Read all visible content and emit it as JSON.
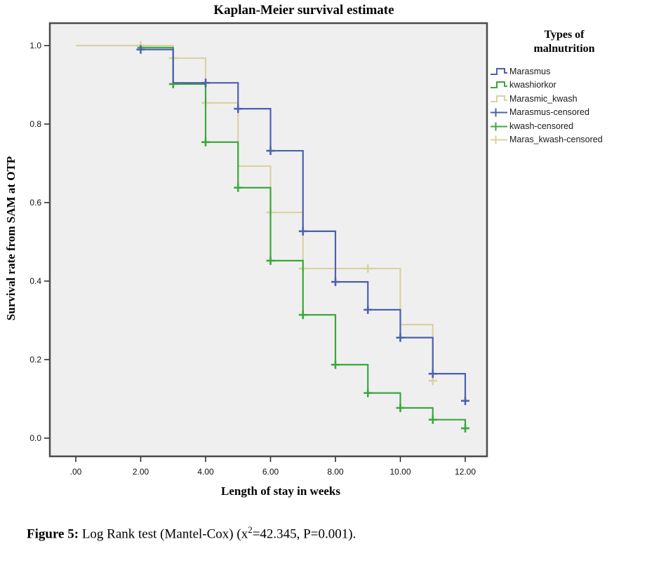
{
  "chart_data": {
    "type": "line",
    "subtype": "kaplan-meier-step",
    "title": "Kaplan-Meier survival estimate",
    "xlabel": "Length of stay in weeks",
    "ylabel": "Survival rate from SAM at OTP",
    "xlim": [
      -0.8,
      12.7
    ],
    "ylim": [
      -0.07,
      1.07
    ],
    "grid": false,
    "legend_position": "right",
    "plot_background": "#f0eff0",
    "frame_color": "#4a4a4a",
    "x_ticks": [
      0,
      2,
      4,
      6,
      8,
      10,
      12
    ],
    "x_tick_labels": [
      ".00",
      "2.00",
      "4.00",
      "6.00",
      "8.00",
      "10.00",
      "12.00"
    ],
    "y_ticks": [
      0.0,
      0.2,
      0.4,
      0.6,
      0.8,
      1.0
    ],
    "y_tick_labels": [
      "0.0",
      "0.2",
      "0.4",
      "0.6",
      "0.8",
      "1.0"
    ],
    "series": [
      {
        "name": "Marasmic_kwash",
        "color": "#d9d2a0",
        "start": [
          0,
          1.0
        ],
        "steps": [
          [
            3,
            0.968
          ],
          [
            4,
            0.854
          ],
          [
            5,
            0.693
          ],
          [
            6,
            0.575
          ],
          [
            7,
            0.432
          ],
          [
            10,
            0.289
          ],
          [
            11,
            0.146
          ]
        ],
        "end": 11.1,
        "censored": [
          [
            2,
            1.0
          ],
          [
            3,
            0.968
          ],
          [
            4,
            0.854
          ],
          [
            6,
            0.575
          ],
          [
            7,
            0.432
          ],
          [
            9,
            0.432
          ],
          [
            11,
            0.146
          ]
        ]
      },
      {
        "name": "kwashiorkor",
        "color": "#39a83c",
        "start": [
          1.9,
          0.995
        ],
        "steps": [
          [
            3,
            0.902
          ],
          [
            4,
            0.754
          ],
          [
            5,
            0.638
          ],
          [
            6,
            0.452
          ],
          [
            7,
            0.314
          ],
          [
            8,
            0.187
          ],
          [
            9,
            0.115
          ],
          [
            10,
            0.077
          ],
          [
            11,
            0.047
          ],
          [
            12,
            0.025
          ]
        ],
        "end": 12.1,
        "censored": [
          [
            3,
            0.902
          ],
          [
            4,
            0.754
          ],
          [
            5,
            0.638
          ],
          [
            6,
            0.452
          ],
          [
            7,
            0.314
          ],
          [
            8,
            0.187
          ],
          [
            9,
            0.115
          ],
          [
            10,
            0.077
          ],
          [
            11,
            0.047
          ],
          [
            12,
            0.025
          ]
        ]
      },
      {
        "name": "Marasmus",
        "color": "#4b61ad",
        "start": [
          1.9,
          0.99
        ],
        "steps": [
          [
            3,
            0.905
          ],
          [
            5,
            0.839
          ],
          [
            6,
            0.732
          ],
          [
            7,
            0.527
          ],
          [
            8,
            0.398
          ],
          [
            9,
            0.327
          ],
          [
            10,
            0.256
          ],
          [
            11,
            0.164
          ],
          [
            12,
            0.095
          ]
        ],
        "end": 12.1,
        "censored": [
          [
            2,
            0.99
          ],
          [
            4,
            0.905
          ],
          [
            5,
            0.839
          ],
          [
            6,
            0.732
          ],
          [
            7,
            0.527
          ],
          [
            8,
            0.398
          ],
          [
            9,
            0.327
          ],
          [
            10,
            0.256
          ],
          [
            11,
            0.164
          ],
          [
            12,
            0.095
          ]
        ]
      }
    ]
  },
  "legend": {
    "title_line1": "Types of",
    "title_line2": "malnutrition",
    "items": [
      {
        "label": "Marasmus",
        "color": "#4b61ad",
        "glyph": "step-line"
      },
      {
        "label": "kwashiorkor",
        "color": "#39a83c",
        "glyph": "step-line"
      },
      {
        "label": "Marasmic_kwash",
        "color": "#d9d2a0",
        "glyph": "step-line"
      },
      {
        "label": "Marasmus-censored",
        "color": "#4b61ad",
        "glyph": "plus"
      },
      {
        "label": "kwash-censored",
        "color": "#39a83c",
        "glyph": "plus"
      },
      {
        "label": "Maras_kwash-censored",
        "color": "#d9d2a0",
        "glyph": "plus"
      }
    ]
  },
  "caption": {
    "label": "Figure 5:",
    "pre_sup": " Log Rank test (Mantel-Cox) (x",
    "sup": "2",
    "post_sup": "=42.345, P=0.001)."
  }
}
